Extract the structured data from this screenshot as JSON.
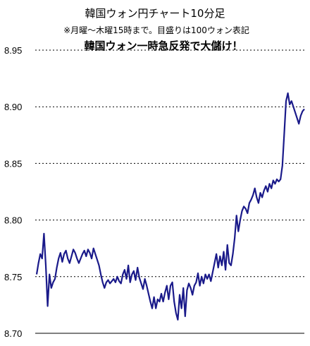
{
  "chart_data": {
    "type": "line",
    "title": "韓国ウォン円チャート10分足",
    "subtitle": "※月曜～木曜15時まで。目盛りは100ウォン表記",
    "annotation": "韓国ウォン一時急反発で大儲け！",
    "ylim": [
      8.7,
      8.95
    ],
    "yticks": [
      "8.95",
      "8.90",
      "8.85",
      "8.80",
      "8.75",
      "8.70"
    ],
    "grid": "horizontal-dotted",
    "line_color": "#1a1a8a",
    "series": [
      {
        "values": [
          8.752,
          8.762,
          8.77,
          8.766,
          8.788,
          8.76,
          8.724,
          8.752,
          8.74,
          8.745,
          8.748,
          8.758,
          8.766,
          8.771,
          8.763,
          8.77,
          8.773,
          8.766,
          8.762,
          8.768,
          8.774,
          8.771,
          8.766,
          8.762,
          8.766,
          8.77,
          8.773,
          8.768,
          8.774,
          8.771,
          8.766,
          8.775,
          8.77,
          8.765,
          8.76,
          8.752,
          8.745,
          8.74,
          8.745,
          8.747,
          8.744,
          8.746,
          8.748,
          8.745,
          8.75,
          8.746,
          8.744,
          8.752,
          8.756,
          8.748,
          8.76,
          8.745,
          8.752,
          8.755,
          8.747,
          8.758,
          8.749,
          8.744,
          8.739,
          8.748,
          8.742,
          8.735,
          8.728,
          8.722,
          8.732,
          8.722,
          8.73,
          8.728,
          8.735,
          8.728,
          8.736,
          8.742,
          8.73,
          8.742,
          8.745,
          8.728,
          8.718,
          8.712,
          8.734,
          8.722,
          8.74,
          8.715,
          8.738,
          8.744,
          8.74,
          8.734,
          8.742,
          8.745,
          8.753,
          8.742,
          8.75,
          8.744,
          8.752,
          8.748,
          8.752,
          8.746,
          8.754,
          8.762,
          8.77,
          8.758,
          8.768,
          8.76,
          8.772,
          8.756,
          8.778,
          8.762,
          8.76,
          8.77,
          8.784,
          8.804,
          8.79,
          8.8,
          8.808,
          8.812,
          8.81,
          8.806,
          8.815,
          8.818,
          8.822,
          8.828,
          8.82,
          8.815,
          8.824,
          8.82,
          8.826,
          8.83,
          8.825,
          8.832,
          8.828,
          8.835,
          8.832,
          8.836,
          8.834,
          8.836,
          8.848,
          8.876,
          8.905,
          8.912,
          8.902,
          8.905,
          8.9,
          8.895,
          8.89,
          8.885,
          8.892,
          8.896,
          8.898
        ]
      }
    ]
  }
}
